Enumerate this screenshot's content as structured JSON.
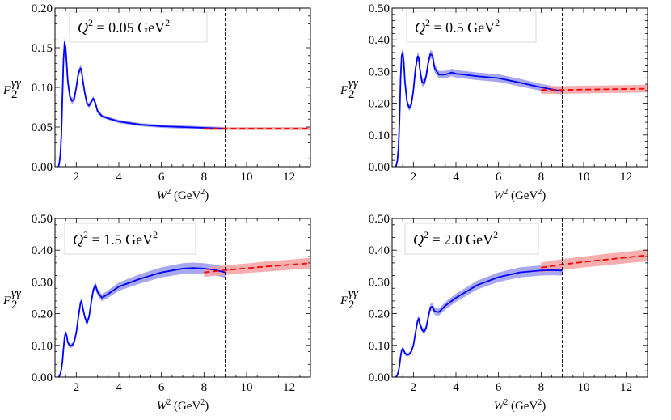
{
  "chart_data": [
    {
      "type": "line",
      "annotation": {
        "var": "Q",
        "sup": "2",
        "text": " = 0.05 GeV",
        "unit_sup": "2"
      },
      "ylabel": {
        "base": "F",
        "sub": "2",
        "sup": "γγ"
      },
      "xlabel": {
        "base": "W",
        "sup": "2",
        "rest": " (GeV",
        "rest_sup": "2",
        "close": ")"
      },
      "xlim": [
        1.0,
        13.0
      ],
      "ylim": [
        0.0,
        0.2
      ],
      "xticks": [
        "2",
        "4",
        "6",
        "8",
        "10",
        "12"
      ],
      "yticks": [
        "0.00",
        "0.05",
        "0.10",
        "0.15",
        "0.20"
      ],
      "vline_x": 9.0,
      "series": [
        {
          "style": "solid",
          "color": "#0000ff",
          "band_color": "#9999ee",
          "x": [
            1.16,
            1.2,
            1.25,
            1.3,
            1.35,
            1.4,
            1.45,
            1.5,
            1.55,
            1.6,
            1.7,
            1.8,
            1.9,
            2.0,
            2.1,
            2.2,
            2.25,
            2.3,
            2.4,
            2.5,
            2.6,
            2.7,
            2.8,
            2.9,
            3.0,
            3.2,
            3.5,
            4.0,
            5.0,
            6.0,
            7.0,
            8.0,
            9.0
          ],
          "y": [
            0.0,
            0.004,
            0.015,
            0.04,
            0.09,
            0.135,
            0.157,
            0.15,
            0.13,
            0.108,
            0.088,
            0.083,
            0.085,
            0.1,
            0.118,
            0.124,
            0.121,
            0.11,
            0.093,
            0.08,
            0.077,
            0.082,
            0.086,
            0.08,
            0.07,
            0.064,
            0.061,
            0.057,
            0.053,
            0.051,
            0.05,
            0.049,
            0.048
          ],
          "err": [
            0.0,
            0.001,
            0.002,
            0.003,
            0.004,
            0.005,
            0.006,
            0.006,
            0.005,
            0.004,
            0.004,
            0.004,
            0.004,
            0.004,
            0.005,
            0.005,
            0.005,
            0.004,
            0.004,
            0.003,
            0.003,
            0.003,
            0.003,
            0.003,
            0.003,
            0.002,
            0.002,
            0.002,
            0.002,
            0.002,
            0.002,
            0.002,
            0.002
          ]
        },
        {
          "style": "dashed",
          "color": "#ff0000",
          "band_color": "#f4a0a0",
          "x": [
            8.0,
            9.0,
            10.0,
            11.0,
            12.0,
            13.0
          ],
          "y": [
            0.048,
            0.048,
            0.048,
            0.048,
            0.048,
            0.048
          ],
          "err": [
            0.002,
            0.002,
            0.002,
            0.002,
            0.002,
            0.002
          ]
        }
      ]
    },
    {
      "type": "line",
      "annotation": {
        "var": "Q",
        "sup": "2",
        "text": " = 0.5 GeV",
        "unit_sup": "2"
      },
      "ylabel": {
        "base": "F",
        "sub": "2",
        "sup": "γγ"
      },
      "xlabel": {
        "base": "W",
        "sup": "2",
        "rest": " (GeV",
        "rest_sup": "2",
        "close": ")"
      },
      "xlim": [
        1.0,
        13.0
      ],
      "ylim": [
        0.0,
        0.5
      ],
      "xticks": [
        "2",
        "4",
        "6",
        "8",
        "10",
        "12"
      ],
      "yticks": [
        "0.00",
        "0.10",
        "0.20",
        "0.30",
        "0.40",
        "0.50"
      ],
      "vline_x": 9.0,
      "series": [
        {
          "style": "solid",
          "color": "#0000ff",
          "band_color": "#9999ee",
          "x": [
            1.16,
            1.2,
            1.25,
            1.3,
            1.35,
            1.4,
            1.45,
            1.5,
            1.55,
            1.6,
            1.7,
            1.8,
            1.9,
            2.0,
            2.1,
            2.2,
            2.25,
            2.3,
            2.4,
            2.5,
            2.6,
            2.7,
            2.8,
            2.9,
            3.0,
            3.2,
            3.5,
            3.8,
            4.0,
            5.0,
            6.0,
            7.0,
            8.0,
            9.0
          ],
          "y": [
            0.0,
            0.005,
            0.02,
            0.06,
            0.15,
            0.28,
            0.35,
            0.36,
            0.33,
            0.27,
            0.205,
            0.185,
            0.195,
            0.24,
            0.31,
            0.348,
            0.345,
            0.31,
            0.268,
            0.262,
            0.285,
            0.33,
            0.355,
            0.35,
            0.31,
            0.29,
            0.29,
            0.297,
            0.293,
            0.285,
            0.279,
            0.265,
            0.25,
            0.238
          ],
          "err": [
            0.0,
            0.002,
            0.004,
            0.006,
            0.008,
            0.01,
            0.012,
            0.012,
            0.011,
            0.01,
            0.01,
            0.01,
            0.01,
            0.011,
            0.012,
            0.013,
            0.013,
            0.012,
            0.012,
            0.012,
            0.012,
            0.013,
            0.013,
            0.013,
            0.013,
            0.012,
            0.012,
            0.012,
            0.012,
            0.012,
            0.012,
            0.012,
            0.011,
            0.011
          ]
        },
        {
          "style": "dashed",
          "color": "#ff0000",
          "band_color": "#f4a0a0",
          "x": [
            8.0,
            9.0,
            10.0,
            11.0,
            12.0,
            13.0
          ],
          "y": [
            0.242,
            0.242,
            0.243,
            0.244,
            0.245,
            0.246
          ],
          "err": [
            0.012,
            0.012,
            0.012,
            0.012,
            0.012,
            0.012
          ]
        }
      ]
    },
    {
      "type": "line",
      "annotation": {
        "var": "Q",
        "sup": "2",
        "text": " = 1.5 GeV",
        "unit_sup": "2"
      },
      "ylabel": {
        "base": "F",
        "sub": "2",
        "sup": "γγ"
      },
      "xlabel": {
        "base": "W",
        "sup": "2",
        "rest": " (GeV",
        "rest_sup": "2",
        "close": ")"
      },
      "xlim": [
        1.0,
        13.0
      ],
      "ylim": [
        0.0,
        0.5
      ],
      "xticks": [
        "2",
        "4",
        "6",
        "8",
        "10",
        "12"
      ],
      "yticks": [
        "0.00",
        "0.10",
        "0.20",
        "0.30",
        "0.40",
        "0.50"
      ],
      "vline_x": 9.0,
      "series": [
        {
          "style": "solid",
          "color": "#0000ff",
          "band_color": "#9999ee",
          "x": [
            1.16,
            1.2,
            1.25,
            1.3,
            1.35,
            1.4,
            1.45,
            1.5,
            1.55,
            1.6,
            1.7,
            1.8,
            1.9,
            2.0,
            2.1,
            2.2,
            2.25,
            2.3,
            2.4,
            2.5,
            2.6,
            2.7,
            2.8,
            2.9,
            3.0,
            3.2,
            3.5,
            4.0,
            5.0,
            6.0,
            7.0,
            7.5,
            8.0,
            8.5,
            9.0
          ],
          "y": [
            0.0,
            0.003,
            0.01,
            0.025,
            0.05,
            0.09,
            0.125,
            0.14,
            0.13,
            0.11,
            0.098,
            0.1,
            0.11,
            0.14,
            0.19,
            0.235,
            0.24,
            0.22,
            0.19,
            0.17,
            0.19,
            0.235,
            0.275,
            0.29,
            0.268,
            0.25,
            0.262,
            0.285,
            0.31,
            0.33,
            0.342,
            0.344,
            0.342,
            0.338,
            0.33
          ],
          "err": [
            0.0,
            0.001,
            0.002,
            0.003,
            0.004,
            0.006,
            0.007,
            0.008,
            0.008,
            0.007,
            0.007,
            0.007,
            0.007,
            0.008,
            0.009,
            0.01,
            0.01,
            0.01,
            0.009,
            0.009,
            0.009,
            0.01,
            0.011,
            0.011,
            0.011,
            0.011,
            0.012,
            0.013,
            0.015,
            0.016,
            0.017,
            0.017,
            0.017,
            0.017,
            0.017
          ]
        },
        {
          "style": "dashed",
          "color": "#ff0000",
          "band_color": "#f4a0a0",
          "x": [
            8.0,
            9.0,
            10.0,
            11.0,
            12.0,
            13.0
          ],
          "y": [
            0.33,
            0.337,
            0.343,
            0.349,
            0.354,
            0.359
          ],
          "err": [
            0.014,
            0.015,
            0.015,
            0.016,
            0.016,
            0.017
          ]
        }
      ]
    },
    {
      "type": "line",
      "annotation": {
        "var": "Q",
        "sup": "2",
        "text": " = 2.0 GeV",
        "unit_sup": "2"
      },
      "ylabel": {
        "base": "F",
        "sub": "2",
        "sup": "γγ"
      },
      "xlabel": {
        "base": "W",
        "sup": "2",
        "rest": " (GeV",
        "rest_sup": "2",
        "close": ")"
      },
      "xlim": [
        1.0,
        13.0
      ],
      "ylim": [
        0.0,
        0.5
      ],
      "xticks": [
        "2",
        "4",
        "6",
        "8",
        "10",
        "12"
      ],
      "yticks": [
        "0.00",
        "0.10",
        "0.20",
        "0.30",
        "0.40",
        "0.50"
      ],
      "vline_x": 9.0,
      "series": [
        {
          "style": "solid",
          "color": "#0000ff",
          "band_color": "#9999ee",
          "x": [
            1.16,
            1.2,
            1.25,
            1.3,
            1.35,
            1.4,
            1.45,
            1.5,
            1.55,
            1.6,
            1.7,
            1.8,
            1.9,
            2.0,
            2.1,
            2.2,
            2.25,
            2.3,
            2.4,
            2.5,
            2.6,
            2.7,
            2.8,
            2.9,
            3.0,
            3.2,
            3.5,
            4.0,
            5.0,
            6.0,
            7.0,
            8.0,
            8.5,
            9.0
          ],
          "y": [
            0.0,
            0.002,
            0.007,
            0.018,
            0.038,
            0.065,
            0.085,
            0.09,
            0.085,
            0.075,
            0.07,
            0.072,
            0.08,
            0.1,
            0.14,
            0.178,
            0.185,
            0.17,
            0.15,
            0.143,
            0.155,
            0.19,
            0.22,
            0.222,
            0.207,
            0.205,
            0.225,
            0.25,
            0.29,
            0.315,
            0.33,
            0.336,
            0.337,
            0.336
          ],
          "err": [
            0.0,
            0.001,
            0.002,
            0.003,
            0.004,
            0.005,
            0.006,
            0.006,
            0.006,
            0.006,
            0.006,
            0.006,
            0.006,
            0.007,
            0.008,
            0.009,
            0.009,
            0.009,
            0.009,
            0.009,
            0.009,
            0.01,
            0.011,
            0.011,
            0.011,
            0.011,
            0.012,
            0.013,
            0.014,
            0.015,
            0.016,
            0.016,
            0.016,
            0.016
          ]
        },
        {
          "style": "dashed",
          "color": "#ff0000",
          "band_color": "#f4a0a0",
          "x": [
            8.0,
            9.0,
            10.0,
            11.0,
            12.0,
            13.0
          ],
          "y": [
            0.345,
            0.355,
            0.363,
            0.37,
            0.377,
            0.384
          ],
          "err": [
            0.016,
            0.017,
            0.017,
            0.018,
            0.018,
            0.019
          ]
        }
      ]
    }
  ]
}
